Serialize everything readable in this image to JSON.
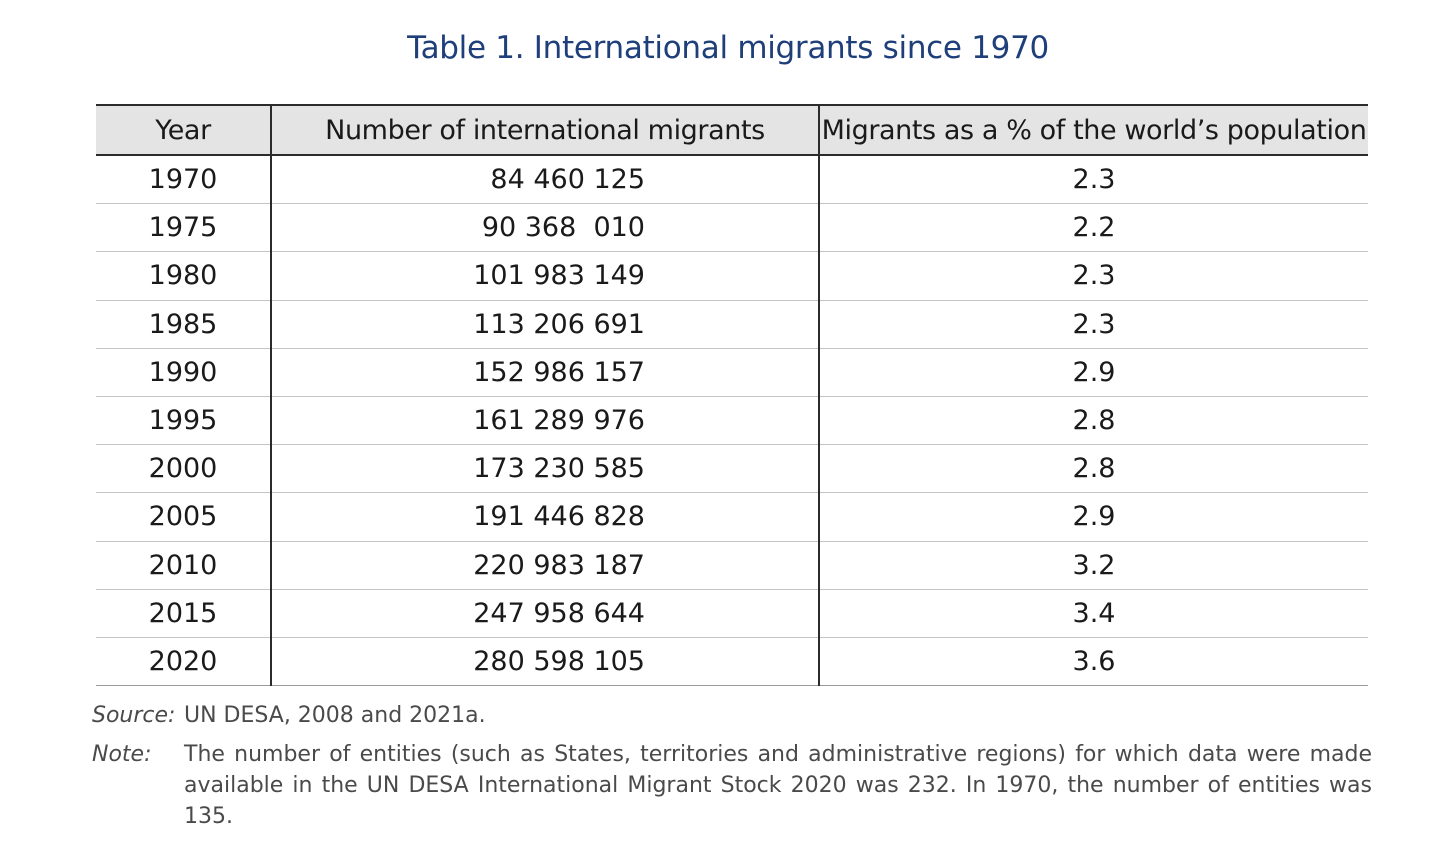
{
  "title": "Table 1. International migrants since 1970",
  "table": {
    "headers": [
      "Year",
      "Number of international migrants",
      "Migrants as a % of the world’s population"
    ],
    "rows": [
      {
        "year": "1970",
        "number": "84 460 125",
        "percent": "2.3"
      },
      {
        "year": "1975",
        "number": "90 368  010",
        "percent": "2.2"
      },
      {
        "year": "1980",
        "number": "101 983 149",
        "percent": "2.3"
      },
      {
        "year": "1985",
        "number": "113 206 691",
        "percent": "2.3"
      },
      {
        "year": "1990",
        "number": "152 986 157",
        "percent": "2.9"
      },
      {
        "year": "1995",
        "number": "161 289 976",
        "percent": "2.8"
      },
      {
        "year": "2000",
        "number": "173 230 585",
        "percent": "2.8"
      },
      {
        "year": "2005",
        "number": "191 446 828",
        "percent": "2.9"
      },
      {
        "year": "2010",
        "number": "220 983 187",
        "percent": "3.2"
      },
      {
        "year": "2015",
        "number": "247 958 644",
        "percent": "3.4"
      },
      {
        "year": "2020",
        "number": "280 598 105",
        "percent": "3.6"
      }
    ]
  },
  "source": {
    "label": "Source:",
    "text": "UN DESA, 2008 and 2021a."
  },
  "note": {
    "label": "Note:",
    "text": "The number of entities (such as States, territories and administrative regions) for which data were made available in the UN DESA International Migrant Stock 2020 was 232. In 1970, the number of entities was 135."
  },
  "colors": {
    "title": "#1f3f7a",
    "header_bg": "#e4e4e4",
    "rule": "#2b2b2b"
  }
}
